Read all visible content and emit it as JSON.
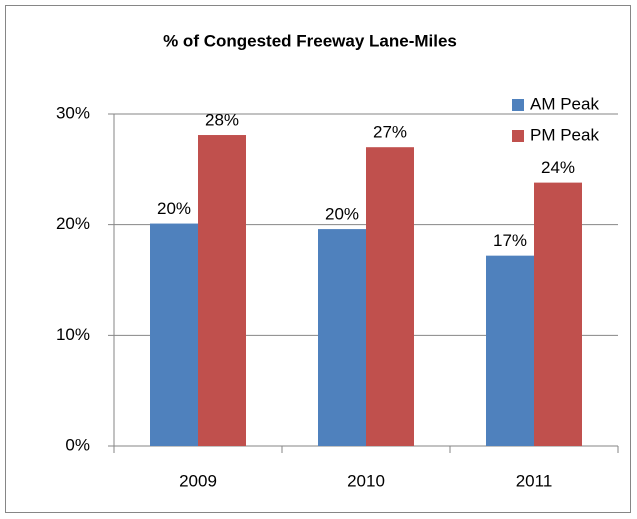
{
  "chart_data": {
    "type": "bar",
    "title": "% of  Congested Freeway Lane-Miles",
    "categories": [
      "2009",
      "2010",
      "2011"
    ],
    "series": [
      {
        "name": "AM Peak",
        "color": "#4f81bd",
        "values": [
          20.1,
          19.6,
          17.2
        ],
        "value_labels": [
          "20%",
          "20%",
          "17%"
        ]
      },
      {
        "name": "PM Peak",
        "color": "#c0504d",
        "values": [
          28.1,
          27.0,
          23.8
        ],
        "value_labels": [
          "28%",
          "27%",
          "24%"
        ]
      }
    ],
    "ylim": [
      0,
      30
    ],
    "yticks": [
      {
        "value": 0,
        "label": "0%"
      },
      {
        "value": 10,
        "label": "10%"
      },
      {
        "value": 20,
        "label": "20%"
      },
      {
        "value": 30,
        "label": "30%"
      }
    ],
    "grid": true,
    "legend": "top-right"
  }
}
